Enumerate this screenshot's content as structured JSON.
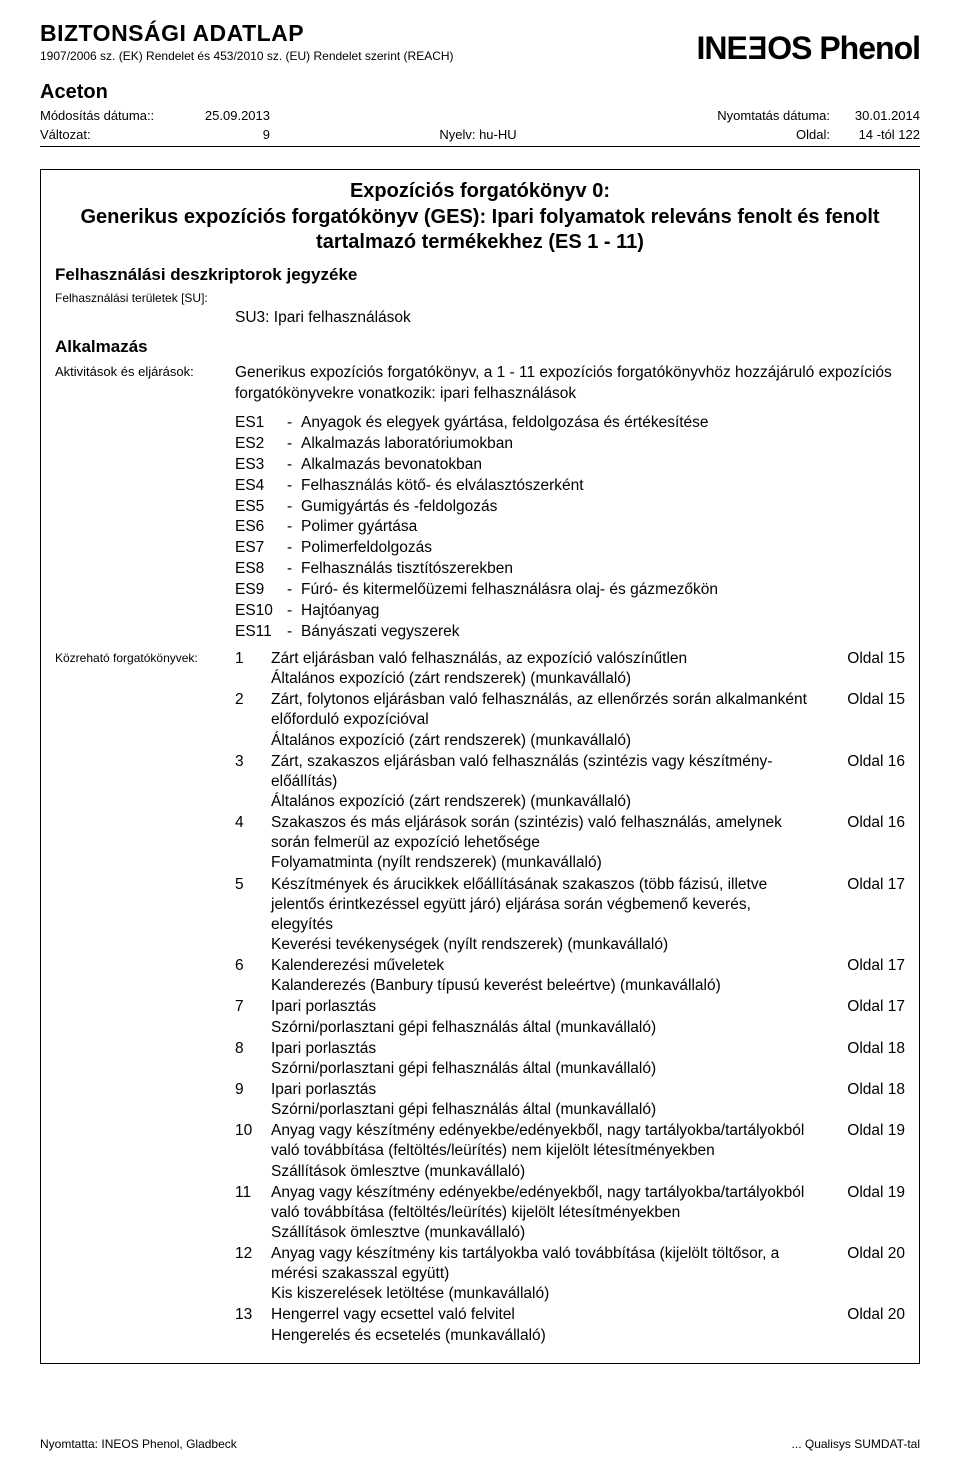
{
  "header": {
    "title": "BIZTONSÁGI ADATLAP",
    "subtitle": "1907/2006 sz. (EK) Rendelet és 453/2010 sz. (EU) Rendelet szerint (REACH)",
    "logo_left": "INE",
    "logo_o": "O",
    "logo_s": "S",
    "logo_brand": "Phenol",
    "product": "Aceton",
    "mod_label": "Módosítás dátuma::",
    "mod_date": "25.09.2013",
    "ver_label": "Változat:",
    "ver_val": "9",
    "lang": "Nyelv: hu-HU",
    "print_label": "Nyomtatás dátuma:",
    "print_date": "30.01.2014",
    "page_label": "Oldal:",
    "page_val": "14 -tól 122"
  },
  "script": {
    "title": "Expozíciós forgatókönyv 0:",
    "subtitle": "Generikus expozíciós forgatókönyv (GES): Ipari folyamatok releváns fenolt és fenolt tartalmazó termékekhez (ES 1 - 11)"
  },
  "section1": "Felhasználási deszkriptorok jegyzéke",
  "su_label": "Felhasználási területek [SU]:",
  "su_val": "SU3: Ipari felhasználások",
  "app": "Alkalmazás",
  "act_label": "Aktivitások és eljárások:",
  "act_val": "Generikus expozíciós forgatókönyv, a 1 - 11 expozíciós forgatókönyvhöz hozzájáruló expozíciós forgatókönyvekre vonatkozik: ipari felhasználások",
  "es": [
    {
      "c": "ES1",
      "t": "Anyagok és elegyek gyártása, feldolgozása és értékesítése"
    },
    {
      "c": "ES2",
      "t": "Alkalmazás laboratóriumokban"
    },
    {
      "c": "ES3",
      "t": "Alkalmazás bevonatokban"
    },
    {
      "c": "ES4",
      "t": "Felhasználás kötő- és elválasztószerként"
    },
    {
      "c": "ES5",
      "t": "Gumigyártás és -feldolgozás"
    },
    {
      "c": "ES6",
      "t": "Polimer gyártása"
    },
    {
      "c": "ES7",
      "t": "Polimerfeldolgozás"
    },
    {
      "c": "ES8",
      "t": "Felhasználás tisztítószerekben"
    },
    {
      "c": "ES9",
      "t": "Fúró- és kitermelőüzemi felhasználásra olaj- és gázmezőkön"
    },
    {
      "c": "ES10",
      "t": "Hajtóanyag"
    },
    {
      "c": "ES11",
      "t": "Bányászati vegyszerek"
    }
  ],
  "scen_label": "Közreható forgatókönyvek:",
  "scenarios": [
    {
      "n": "1",
      "d": "Zárt eljárásban való felhasználás, az expozíció valószínűtlen\nÁltalános expozíció (zárt rendszerek) (munkavállaló)",
      "p": "Oldal 15"
    },
    {
      "n": "2",
      "d": "Zárt, folytonos eljárásban való felhasználás, az ellenőrzés során alkalmanként előforduló expozícióval\nÁltalános expozíció (zárt rendszerek) (munkavállaló)",
      "p": "Oldal 15"
    },
    {
      "n": "3",
      "d": "Zárt, szakaszos eljárásban való felhasználás (szintézis vagy készítmény-előállítás)\nÁltalános expozíció (zárt rendszerek) (munkavállaló)",
      "p": "Oldal 16"
    },
    {
      "n": "4",
      "d": "Szakaszos és más eljárások során (szintézis) való felhasználás, amelynek során felmerül az expozíció lehetősége\nFolyamatminta (nyílt rendszerek) (munkavállaló)",
      "p": "Oldal 16"
    },
    {
      "n": "5",
      "d": "Készítmények és árucikkek előállításának szakaszos (több fázisú, illetve jelentős érintkezéssel együtt járó) eljárása során végbemenő keverés, elegyítés\nKeverési tevékenységek (nyílt rendszerek) (munkavállaló)",
      "p": "Oldal 17"
    },
    {
      "n": "6",
      "d": "Kalenderezési műveletek\nKalanderezés (Banbury típusú keverést beleértve) (munkavállaló)",
      "p": "Oldal 17"
    },
    {
      "n": "7",
      "d": "Ipari porlasztás\nSzórni/porlasztani gépi felhasználás által (munkavállaló)",
      "p": "Oldal 17"
    },
    {
      "n": "8",
      "d": "Ipari porlasztás\nSzórni/porlasztani gépi felhasználás által (munkavállaló)",
      "p": "Oldal 18"
    },
    {
      "n": "9",
      "d": "Ipari porlasztás\nSzórni/porlasztani gépi felhasználás által (munkavállaló)",
      "p": "Oldal 18"
    },
    {
      "n": "10",
      "d": "Anyag vagy készítmény edényekbe/edényekből, nagy tartályokba/tartályokból való továbbítása (feltöltés/leürítés) nem kijelölt létesítményekben\nSzállítások ömlesztve (munkavállaló)",
      "p": "Oldal 19"
    },
    {
      "n": "11",
      "d": "Anyag vagy készítmény edényekbe/edényekből, nagy tartályokba/tartályokból való továbbítása (feltöltés/leürítés) kijelölt létesítményekben\nSzállítások ömlesztve (munkavállaló)",
      "p": "Oldal 19"
    },
    {
      "n": "12",
      "d": "Anyag vagy készítmény kis tartályokba való továbbítása (kijelölt töltősor, a mérési szakasszal együtt)\nKis kiszerelések letöltése (munkavállaló)",
      "p": "Oldal 20"
    },
    {
      "n": "13",
      "d": "Hengerrel vagy ecsettel való felvitel\nHengerelés és ecsetelés (munkavállaló)",
      "p": "Oldal 20"
    }
  ],
  "footer": {
    "left": "Nyomtatta: INEOS Phenol, Gladbeck",
    "right": "... Qualisys SUMDAT-tal"
  }
}
